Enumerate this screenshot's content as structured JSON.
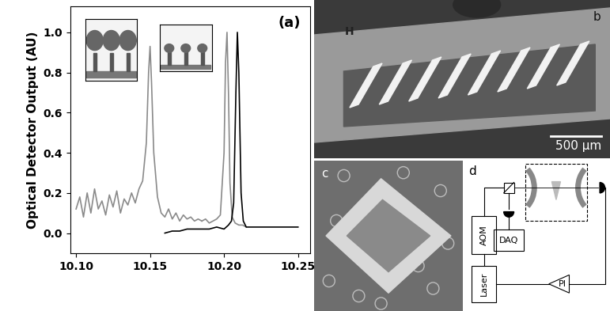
{
  "chart_data": {
    "type": "line",
    "annotation": "(a)",
    "y_label": "Optical Detector Output (AU)",
    "xlim": [
      10.096,
      10.258
    ],
    "xticks": [
      {
        "value": 10.1,
        "label": "10.10"
      },
      {
        "value": 10.15,
        "label": "10.15"
      },
      {
        "value": 10.2,
        "label": "10.20"
      },
      {
        "value": 10.25,
        "label": "10.25"
      }
    ],
    "ylim": [
      -0.1,
      1.13
    ],
    "yticks": [
      {
        "value": 0,
        "label": "0.0"
      },
      {
        "value": 0.2,
        "label": "0.2"
      },
      {
        "value": 0.4,
        "label": "0.4"
      },
      {
        "value": 0.6,
        "label": "0.6"
      },
      {
        "value": 0.8,
        "label": "0.8"
      },
      {
        "value": 1,
        "label": "1.0"
      }
    ],
    "grid": false,
    "series": [
      {
        "color": "#8a8a8a",
        "x": [
          10.1,
          10.1025,
          10.105,
          10.1075,
          10.11,
          10.1125,
          10.115,
          10.1175,
          10.12,
          10.1225,
          10.125,
          10.1275,
          10.13,
          10.1325,
          10.135,
          10.1375,
          10.14,
          10.1425,
          10.145,
          10.1475,
          10.149,
          10.15,
          10.151,
          10.1525,
          10.155,
          10.1575,
          10.16,
          10.1625,
          10.165,
          10.1675,
          10.17,
          10.1725,
          10.175,
          10.1775,
          10.18,
          10.1825,
          10.185
        ],
        "values": [
          0.12,
          0.18,
          0.08,
          0.2,
          0.1,
          0.22,
          0.12,
          0.16,
          0.09,
          0.19,
          0.13,
          0.21,
          0.1,
          0.17,
          0.14,
          0.2,
          0.15,
          0.22,
          0.26,
          0.45,
          0.8,
          0.93,
          0.75,
          0.4,
          0.18,
          0.1,
          0.08,
          0.12,
          0.07,
          0.1,
          0.06,
          0.09,
          0.07,
          0.08,
          0.06,
          0.07,
          0.06
        ]
      },
      {
        "color": "#8a8a8a",
        "x": [
          10.185,
          10.1875,
          10.19,
          10.1925,
          10.195,
          10.1975,
          10.2,
          10.201,
          10.202,
          10.203,
          10.204,
          10.2055,
          10.2075,
          10.21,
          10.2125,
          10.215
        ],
        "values": [
          0.06,
          0.07,
          0.05,
          0.06,
          0.07,
          0.09,
          0.4,
          0.85,
          1.0,
          0.7,
          0.25,
          0.08,
          0.05,
          0.04,
          0.04,
          0.03
        ]
      },
      {
        "color": "#000000",
        "x": [
          10.16,
          10.165,
          10.17,
          10.175,
          10.18,
          10.185,
          10.19,
          10.195,
          10.2,
          10.203,
          10.205,
          10.2065,
          10.208,
          10.209,
          10.21,
          10.2115,
          10.213,
          10.215,
          10.22,
          10.225,
          10.23,
          10.235,
          10.24,
          10.245,
          10.25
        ],
        "values": [
          0.0,
          0.01,
          0.01,
          0.02,
          0.02,
          0.02,
          0.02,
          0.03,
          0.02,
          0.04,
          0.06,
          0.15,
          0.7,
          1.0,
          0.8,
          0.2,
          0.06,
          0.03,
          0.03,
          0.03,
          0.03,
          0.03,
          0.03,
          0.03,
          0.03
        ]
      }
    ]
  },
  "panels": {
    "b": {
      "label": "b",
      "texts": [
        "H"
      ],
      "scale_bar": "500 µm"
    },
    "c": {
      "label": "c"
    },
    "d": {
      "label": "d",
      "nodes": {
        "laser": "Laser",
        "aom": "AOM",
        "daq": "DAQ",
        "controller": "PI"
      }
    }
  }
}
